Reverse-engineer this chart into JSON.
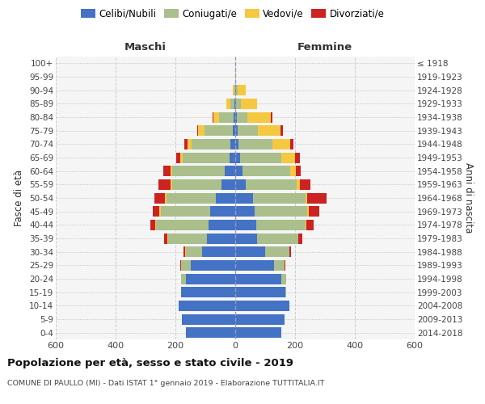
{
  "age_groups_bottom_to_top": [
    "0-4",
    "5-9",
    "10-14",
    "15-19",
    "20-24",
    "25-29",
    "30-34",
    "35-39",
    "40-44",
    "45-49",
    "50-54",
    "55-59",
    "60-64",
    "65-69",
    "70-74",
    "75-79",
    "80-84",
    "85-89",
    "90-94",
    "95-99",
    "100+"
  ],
  "birth_years_bottom_to_top": [
    "2014-2018",
    "2009-2013",
    "2004-2008",
    "1999-2003",
    "1994-1998",
    "1989-1993",
    "1984-1988",
    "1979-1983",
    "1974-1978",
    "1969-1973",
    "1964-1968",
    "1959-1963",
    "1954-1958",
    "1949-1953",
    "1944-1948",
    "1939-1943",
    "1934-1938",
    "1929-1933",
    "1924-1928",
    "1919-1923",
    "≤ 1918"
  ],
  "males": {
    "celibi": [
      165,
      178,
      190,
      180,
      165,
      150,
      110,
      95,
      90,
      85,
      65,
      45,
      35,
      20,
      15,
      8,
      5,
      2,
      1,
      1,
      1
    ],
    "coniugati": [
      0,
      0,
      0,
      2,
      15,
      30,
      55,
      130,
      175,
      165,
      165,
      165,
      175,
      155,
      130,
      95,
      50,
      15,
      3,
      0,
      0
    ],
    "vedovi": [
      0,
      0,
      0,
      0,
      2,
      2,
      2,
      2,
      3,
      5,
      5,
      5,
      5,
      10,
      15,
      20,
      18,
      12,
      5,
      0,
      0
    ],
    "divorziati": [
      0,
      0,
      0,
      0,
      0,
      2,
      5,
      12,
      15,
      20,
      35,
      42,
      25,
      12,
      10,
      5,
      2,
      0,
      0,
      0,
      0
    ]
  },
  "females": {
    "nubili": [
      155,
      165,
      182,
      168,
      155,
      130,
      100,
      72,
      70,
      65,
      60,
      35,
      25,
      15,
      10,
      7,
      5,
      4,
      2,
      1,
      1
    ],
    "coniugate": [
      0,
      0,
      0,
      3,
      15,
      35,
      80,
      138,
      165,
      175,
      175,
      170,
      158,
      140,
      115,
      70,
      35,
      15,
      5,
      0,
      0
    ],
    "vedove": [
      0,
      0,
      0,
      0,
      1,
      1,
      1,
      2,
      3,
      5,
      5,
      12,
      20,
      45,
      58,
      75,
      80,
      55,
      28,
      2,
      0
    ],
    "divorziate": [
      0,
      0,
      0,
      0,
      0,
      2,
      5,
      12,
      25,
      35,
      65,
      35,
      15,
      15,
      12,
      8,
      5,
      0,
      0,
      0,
      0
    ]
  },
  "colors": {
    "celibi_nubili": "#4472C4",
    "coniugati": "#AABF8C",
    "vedovi": "#F5C842",
    "divorziati": "#CC2222"
  },
  "xlim": 600,
  "title": "Popolazione per età, sesso e stato civile - 2019",
  "subtitle": "COMUNE DI PAULLO (MI) - Dati ISTAT 1° gennaio 2019 - Elaborazione TUTTITALIA.IT",
  "ylabel_left": "Fasce di età",
  "ylabel_right": "Anni di nascita",
  "xlabel_left": "Maschi",
  "xlabel_right": "Femmine",
  "legend_labels": [
    "Celibi/Nubili",
    "Coniugati/e",
    "Vedovi/e",
    "Divorziati/e"
  ],
  "bg_color": "#f5f5f5",
  "grid_color": "#cccccc"
}
